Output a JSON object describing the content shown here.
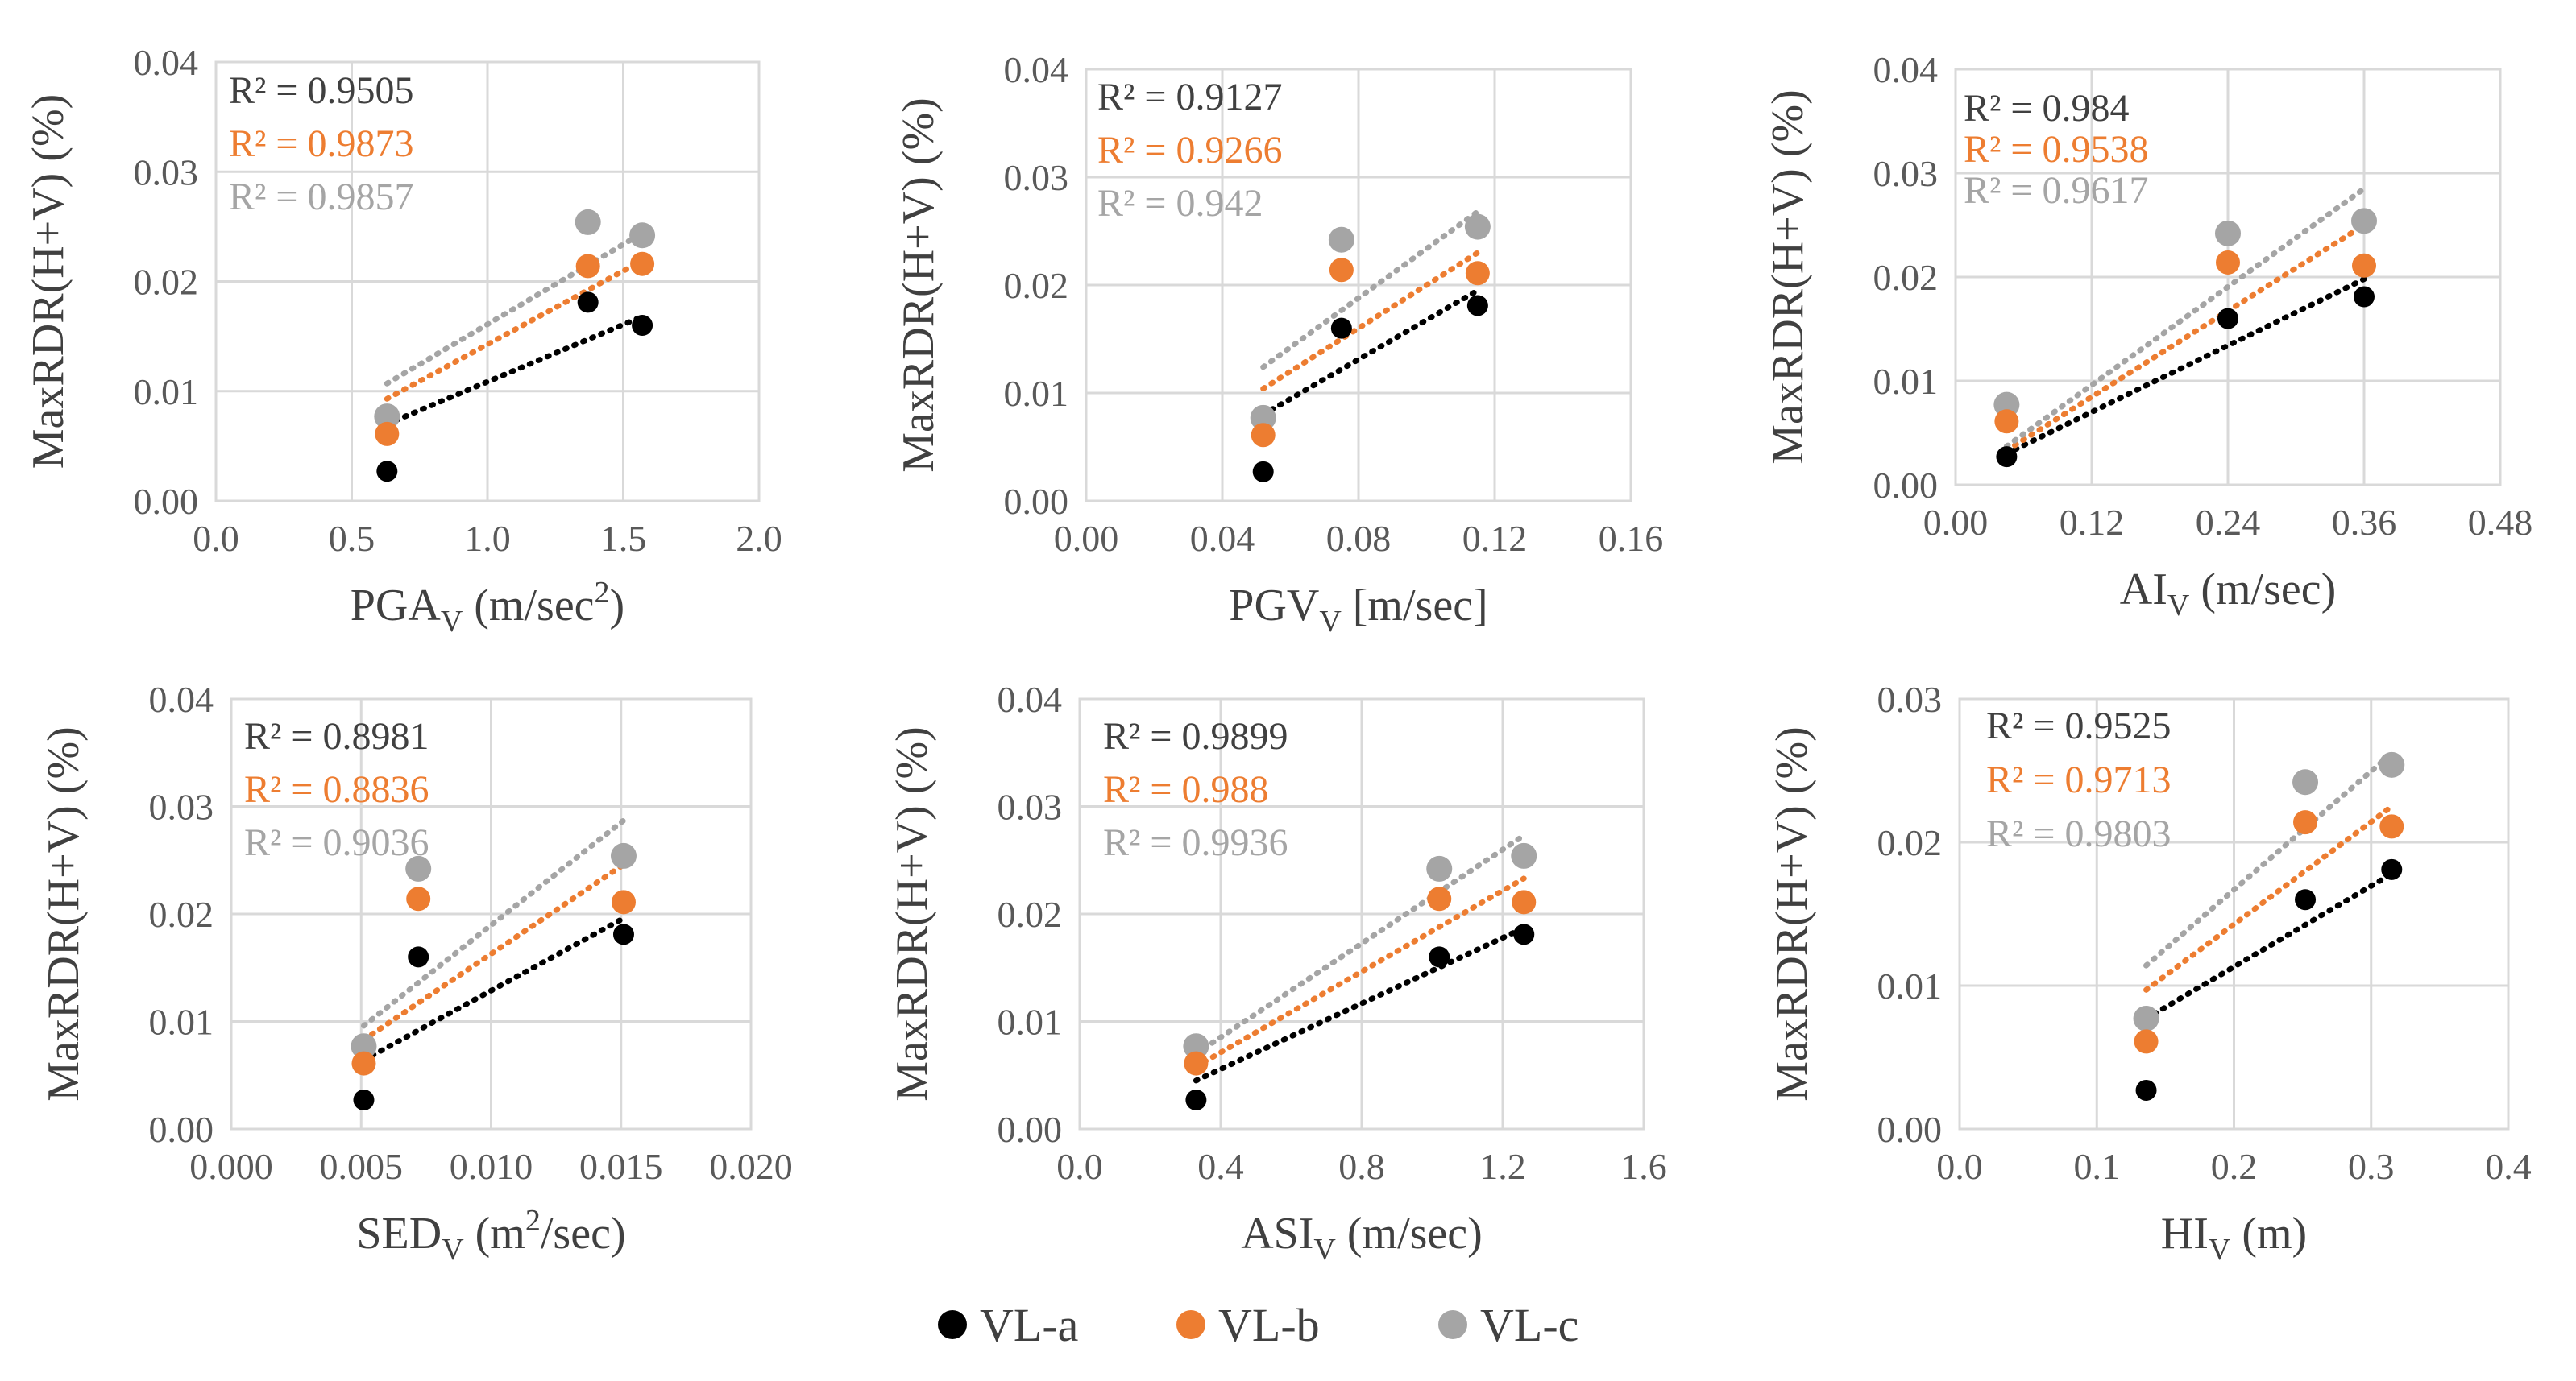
{
  "colors": {
    "VL-a": "#000000",
    "VL-b": "#ED7D31",
    "VL-c": "#A5A5A5",
    "grid": "#D9D9D9",
    "text": "#595959"
  },
  "legend": {
    "items": [
      {
        "label": "VL-a",
        "color": "#000000"
      },
      {
        "label": "VL-b",
        "color": "#ED7D31"
      },
      {
        "label": "VL-c",
        "color": "#A5A5A5"
      }
    ]
  },
  "chart_data": [
    {
      "type": "scatter",
      "xlabel": {
        "base": "PGA",
        "sub": "V",
        "pre_sup": " (m/sec",
        "sup": "2",
        "post": ")"
      },
      "ylabel": "MaxRDR(H+V) (%)",
      "xlim": [
        0,
        2.0
      ],
      "ylim": [
        0,
        0.04
      ],
      "xticks": [
        0,
        0.5,
        1.0,
        1.5,
        2.0
      ],
      "xtick_labels": [
        "0.0",
        "0.5",
        "1.0",
        "1.5",
        "2.0"
      ],
      "yticks": [
        0,
        0.01,
        0.02,
        0.03,
        0.04
      ],
      "ytick_labels": [
        "0.00",
        "0.01",
        "0.02",
        "0.03",
        "0.04"
      ],
      "series": [
        {
          "name": "VL-a",
          "x": [
            0.63,
            1.37,
            1.57
          ],
          "y": [
            0.0027,
            0.0181,
            0.016
          ],
          "trend_x": [
            0.63,
            1.57
          ],
          "trend_y": [
            0.007,
            0.0168
          ],
          "r2": "R² = 0.9505"
        },
        {
          "name": "VL-b",
          "x": [
            0.63,
            1.37,
            1.57
          ],
          "y": [
            0.0061,
            0.0214,
            0.0216
          ],
          "trend_x": [
            0.63,
            1.57
          ],
          "trend_y": [
            0.0093,
            0.0219
          ],
          "r2": "R² = 0.9873"
        },
        {
          "name": "VL-c",
          "x": [
            0.63,
            1.37,
            1.57
          ],
          "y": [
            0.0077,
            0.0254,
            0.0242
          ],
          "trend_x": [
            0.63,
            1.57
          ],
          "trend_y": [
            0.0107,
            0.0244
          ],
          "r2": "R² = 0.9857"
        }
      ]
    },
    {
      "type": "scatter",
      "xlabel": {
        "base": "PGV",
        "sub": "V",
        "pre_sup": " [m/sec]",
        "sup": "",
        "post": ""
      },
      "ylabel": "MaxRDR(H+V) (%)",
      "xlim": [
        0,
        0.16
      ],
      "ylim": [
        0,
        0.04
      ],
      "xticks": [
        0,
        0.04,
        0.08,
        0.12,
        0.16
      ],
      "xtick_labels": [
        "0.00",
        "0.04",
        "0.08",
        "0.12",
        "0.16"
      ],
      "yticks": [
        0,
        0.01,
        0.02,
        0.03,
        0.04
      ],
      "ytick_labels": [
        "0.00",
        "0.01",
        "0.02",
        "0.03",
        "0.04"
      ],
      "series": [
        {
          "name": "VL-a",
          "x": [
            0.052,
            0.075,
            0.115
          ],
          "y": [
            0.0027,
            0.016,
            0.0181
          ],
          "trend_x": [
            0.052,
            0.115
          ],
          "trend_y": [
            0.008,
            0.0195
          ],
          "r2": "R² = 0.9127"
        },
        {
          "name": "VL-b",
          "x": [
            0.052,
            0.075,
            0.115
          ],
          "y": [
            0.0061,
            0.0214,
            0.0211
          ],
          "trend_x": [
            0.052,
            0.115
          ],
          "trend_y": [
            0.0104,
            0.023
          ],
          "r2": "R² = 0.9266"
        },
        {
          "name": "VL-c",
          "x": [
            0.052,
            0.075,
            0.115
          ],
          "y": [
            0.0077,
            0.0242,
            0.0254
          ],
          "trend_x": [
            0.052,
            0.115
          ],
          "trend_y": [
            0.0124,
            0.0268
          ],
          "r2": "R² = 0.942"
        }
      ]
    },
    {
      "type": "scatter",
      "xlabel": {
        "base": "AI",
        "sub": "V",
        "pre_sup": " (m/sec)",
        "sup": "",
        "post": ""
      },
      "ylabel": "MaxRDR(H+V) (%)",
      "xlim": [
        0,
        0.48
      ],
      "ylim": [
        0,
        0.04
      ],
      "xticks": [
        0,
        0.12,
        0.24,
        0.36,
        0.48
      ],
      "xtick_labels": [
        "0.00",
        "0.12",
        "0.24",
        "0.36",
        "0.48"
      ],
      "yticks": [
        0,
        0.01,
        0.02,
        0.03,
        0.04
      ],
      "ytick_labels": [
        "0.00",
        "0.01",
        "0.02",
        "0.03",
        "0.04"
      ],
      "series": [
        {
          "name": "VL-a",
          "x": [
            0.045,
            0.24,
            0.36
          ],
          "y": [
            0.0027,
            0.016,
            0.0181
          ],
          "trend_x": [
            0.045,
            0.36
          ],
          "trend_y": [
            0.003,
            0.0198
          ],
          "r2": "R² = 0.984"
        },
        {
          "name": "VL-b",
          "x": [
            0.045,
            0.24,
            0.36
          ],
          "y": [
            0.0061,
            0.0214,
            0.0211
          ],
          "trend_x": [
            0.045,
            0.36
          ],
          "trend_y": [
            0.0033,
            0.025
          ],
          "r2": "R² = 0.9538"
        },
        {
          "name": "VL-c",
          "x": [
            0.045,
            0.24,
            0.36
          ],
          "y": [
            0.0077,
            0.0242,
            0.0254
          ],
          "trend_x": [
            0.045,
            0.36
          ],
          "trend_y": [
            0.0037,
            0.0285
          ],
          "r2": "R² = 0.9617"
        }
      ]
    },
    {
      "type": "scatter",
      "xlabel": {
        "base": "SED",
        "sub": "V",
        "pre_sup": " (m",
        "sup": "2",
        "post": "/sec)"
      },
      "ylabel": "MaxRDR(H+V) (%)",
      "xlim": [
        0,
        0.02
      ],
      "ylim": [
        0,
        0.04
      ],
      "xticks": [
        0,
        0.005,
        0.01,
        0.015,
        0.02
      ],
      "xtick_labels": [
        "0.000",
        "0.005",
        "0.010",
        "0.015",
        "0.020"
      ],
      "yticks": [
        0,
        0.01,
        0.02,
        0.03,
        0.04
      ],
      "ytick_labels": [
        "0.00",
        "0.01",
        "0.02",
        "0.03",
        "0.04"
      ],
      "series": [
        {
          "name": "VL-a",
          "x": [
            0.0051,
            0.0072,
            0.0151
          ],
          "y": [
            0.0027,
            0.016,
            0.0181
          ],
          "trend_x": [
            0.0051,
            0.0151
          ],
          "trend_y": [
            0.0064,
            0.0196
          ],
          "r2": "R² = 0.8981"
        },
        {
          "name": "VL-b",
          "x": [
            0.0051,
            0.0072,
            0.0151
          ],
          "y": [
            0.0061,
            0.0214,
            0.0211
          ],
          "trend_x": [
            0.0051,
            0.0151
          ],
          "trend_y": [
            0.0083,
            0.0246
          ],
          "r2": "R² = 0.8836"
        },
        {
          "name": "VL-c",
          "x": [
            0.0051,
            0.0072,
            0.0151
          ],
          "y": [
            0.0077,
            0.0242,
            0.0254
          ],
          "trend_x": [
            0.0051,
            0.0151
          ],
          "trend_y": [
            0.0096,
            0.0287
          ],
          "r2": "R² = 0.9036"
        }
      ]
    },
    {
      "type": "scatter",
      "xlabel": {
        "base": "ASI",
        "sub": "V",
        "pre_sup": " (m/sec)",
        "sup": "",
        "post": ""
      },
      "ylabel": "MaxRDR(H+V) (%)",
      "xlim": [
        0,
        1.6
      ],
      "ylim": [
        0,
        0.04
      ],
      "xticks": [
        0,
        0.4,
        0.8,
        1.2,
        1.6
      ],
      "xtick_labels": [
        "0.0",
        "0.4",
        "0.8",
        "1.2",
        "1.6"
      ],
      "yticks": [
        0,
        0.01,
        0.02,
        0.03,
        0.04
      ],
      "ytick_labels": [
        "0.00",
        "0.01",
        "0.02",
        "0.03",
        "0.04"
      ],
      "series": [
        {
          "name": "VL-a",
          "x": [
            0.33,
            1.02,
            1.26
          ],
          "y": [
            0.0027,
            0.016,
            0.0181
          ],
          "trend_x": [
            0.33,
            1.26
          ],
          "trend_y": [
            0.0045,
            0.0187
          ],
          "r2": "R² = 0.9899"
        },
        {
          "name": "VL-b",
          "x": [
            0.33,
            1.02,
            1.26
          ],
          "y": [
            0.0061,
            0.0214,
            0.0211
          ],
          "trend_x": [
            0.33,
            1.26
          ],
          "trend_y": [
            0.0058,
            0.0233
          ],
          "r2": "R² = 0.988"
        },
        {
          "name": "VL-c",
          "x": [
            0.33,
            1.02,
            1.26
          ],
          "y": [
            0.0077,
            0.0242,
            0.0254
          ],
          "trend_x": [
            0.33,
            1.26
          ],
          "trend_y": [
            0.007,
            0.0273
          ],
          "r2": "R² = 0.9936"
        }
      ]
    },
    {
      "type": "scatter",
      "xlabel": {
        "base": "HI",
        "sub": "V",
        "pre_sup": " (m)",
        "sup": "",
        "post": ""
      },
      "ylabel": "MaxRDR(H+V) (%)",
      "xlim": [
        0,
        0.4
      ],
      "ylim": [
        0,
        0.03
      ],
      "xticks": [
        0,
        0.1,
        0.2,
        0.3,
        0.4
      ],
      "xtick_labels": [
        "0.0",
        "0.1",
        "0.2",
        "0.3",
        "0.4"
      ],
      "yticks": [
        0,
        0.01,
        0.02,
        0.03
      ],
      "ytick_labels": [
        "0.00",
        "0.01",
        "0.02",
        "0.03"
      ],
      "series": [
        {
          "name": "VL-a",
          "x": [
            0.136,
            0.252,
            0.315
          ],
          "y": [
            0.0027,
            0.016,
            0.0181
          ],
          "trend_x": [
            0.136,
            0.315
          ],
          "trend_y": [
            0.0077,
            0.0178
          ],
          "r2": "R² = 0.9525"
        },
        {
          "name": "VL-b",
          "x": [
            0.136,
            0.252,
            0.315
          ],
          "y": [
            0.0061,
            0.0214,
            0.0211
          ],
          "trend_x": [
            0.136,
            0.315
          ],
          "trend_y": [
            0.0097,
            0.0225
          ],
          "r2": "R² = 0.9713"
        },
        {
          "name": "VL-c",
          "x": [
            0.136,
            0.252,
            0.315
          ],
          "y": [
            0.0077,
            0.0242,
            0.0254
          ],
          "trend_x": [
            0.136,
            0.315
          ],
          "trend_y": [
            0.0114,
            0.0262
          ],
          "r2": "R² = 0.9803"
        }
      ]
    }
  ]
}
